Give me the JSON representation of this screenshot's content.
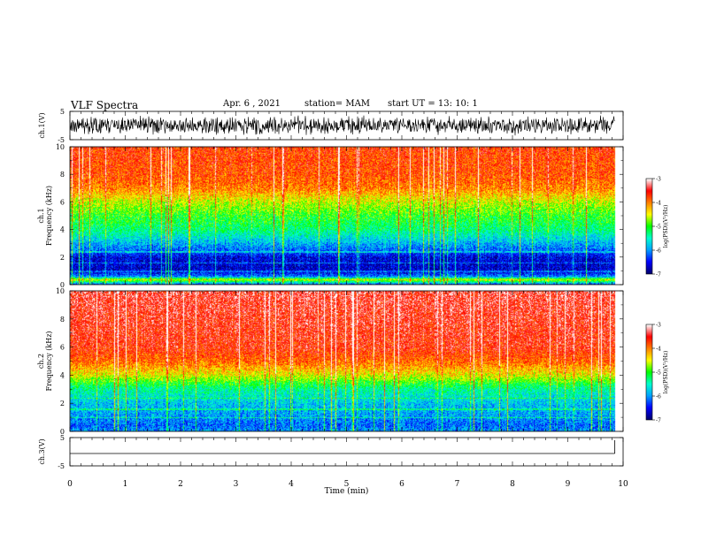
{
  "header": {
    "title": "VLF Spectra",
    "date": "Apr. 6  , 2021",
    "station": "station= MAM",
    "start": "start  UT =  13: 10: 1"
  },
  "chart_data": [
    {
      "type": "line",
      "title": "",
      "ylabel": "ch.1(V)",
      "ylim": [
        -5,
        5
      ],
      "yticks": [
        "5",
        "-5"
      ],
      "xlim": [
        0,
        10
      ],
      "series": [
        {
          "values": "broadband noise, roughly -3 to +3 V throughout"
        }
      ]
    },
    {
      "type": "heatmap",
      "ylabel_top": "ch.1",
      "ylabel": "Frequency (kHz)",
      "ylim": [
        0,
        10
      ],
      "yticks": [
        "0",
        "2",
        "4",
        "6",
        "8",
        "10"
      ],
      "xlim": [
        0,
        10
      ],
      "data_end_min": 9.85,
      "profile_log_psd": [
        {
          "f": 0.0,
          "v": -6.5
        },
        {
          "f": 0.4,
          "v": -4.5
        },
        {
          "f": 0.6,
          "v": -6.0
        },
        {
          "f": 1.0,
          "v": -6.7
        },
        {
          "f": 2.0,
          "v": -6.6
        },
        {
          "f": 2.5,
          "v": -6.2
        },
        {
          "f": 3.0,
          "v": -5.9
        },
        {
          "f": 4.0,
          "v": -5.3
        },
        {
          "f": 5.0,
          "v": -5.0
        },
        {
          "f": 6.0,
          "v": -4.6
        },
        {
          "f": 7.0,
          "v": -4.0
        },
        {
          "f": 8.0,
          "v": -3.8
        },
        {
          "f": 10.0,
          "v": -3.7
        }
      ],
      "colorbar": {
        "label": "log(PSD)(V²/Hz)",
        "ticks": [
          "-3",
          "-4",
          "-5",
          "-6",
          "-7"
        ],
        "range": [
          -7,
          -3
        ]
      }
    },
    {
      "type": "heatmap",
      "ylabel_top": "ch.2",
      "ylabel": "Frequency (kHz)",
      "ylim": [
        0,
        10
      ],
      "yticks": [
        "0",
        "2",
        "4",
        "6",
        "8",
        "10"
      ],
      "xlim": [
        0,
        10
      ],
      "data_end_min": 9.85,
      "profile_log_psd": [
        {
          "f": 0.0,
          "v": -6.0
        },
        {
          "f": 0.5,
          "v": -6.2
        },
        {
          "f": 1.0,
          "v": -6.0
        },
        {
          "f": 2.0,
          "v": -5.8
        },
        {
          "f": 3.0,
          "v": -5.4
        },
        {
          "f": 3.5,
          "v": -5.0
        },
        {
          "f": 4.0,
          "v": -4.5
        },
        {
          "f": 5.0,
          "v": -3.9
        },
        {
          "f": 6.0,
          "v": -3.6
        },
        {
          "f": 10.0,
          "v": -3.4
        }
      ],
      "colorbar": {
        "label": "log(PSD)(V²/Hz)",
        "ticks": [
          "-3",
          "-4",
          "-5",
          "-6",
          "-7"
        ],
        "range": [
          -7,
          -3
        ]
      }
    },
    {
      "type": "line",
      "ylabel": "ch.3(V)",
      "ylim": [
        -5,
        5
      ],
      "yticks": [
        "5",
        "-5"
      ],
      "xlabel": "Time (min)",
      "xlim": [
        0,
        10
      ],
      "xticks": [
        "0",
        "1",
        "2",
        "3",
        "4",
        "5",
        "6",
        "7",
        "8",
        "9",
        "10"
      ],
      "series": [
        {
          "values": "flat line near 0 V"
        }
      ]
    }
  ],
  "colors": {
    "colormap": [
      "#000070",
      "#0000ff",
      "#00a0ff",
      "#00ffd0",
      "#00ff00",
      "#ffff00",
      "#ff8000",
      "#ff0000",
      "#ffffff"
    ]
  }
}
